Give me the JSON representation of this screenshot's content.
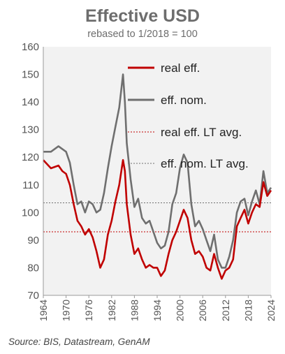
{
  "chart_data": {
    "type": "line",
    "title": "Effective USD",
    "subtitle": "rebased to 1/2018 = 100",
    "ylim": [
      70,
      160
    ],
    "yticks": [
      70,
      80,
      90,
      100,
      110,
      120,
      130,
      140,
      150,
      160
    ],
    "xlim": [
      1964,
      2024
    ],
    "xticks": [
      "1964",
      "1970",
      "1976",
      "1982",
      "1988",
      "1994",
      "2000",
      "2006",
      "2012",
      "2018",
      "2024"
    ],
    "grid": false,
    "legend_position": "top-right",
    "series": [
      {
        "name": "real eff.",
        "color": "#c00000",
        "style": "solid",
        "x": [
          1964,
          1966,
          1968,
          1969,
          1970,
          1971,
          1972,
          1973,
          1974,
          1975,
          1976,
          1977,
          1978,
          1979,
          1980,
          1981,
          1982,
          1983,
          1984,
          1985,
          1985.5,
          1986,
          1987,
          1988,
          1989,
          1990,
          1991,
          1992,
          1993,
          1994,
          1995,
          1996,
          1997,
          1998,
          1999,
          2000,
          2001,
          2002,
          2003,
          2004,
          2005,
          2006,
          2007,
          2008,
          2009,
          2010,
          2011,
          2012,
          2013,
          2014,
          2015,
          2016,
          2017,
          2018,
          2019,
          2020,
          2021,
          2022,
          2023,
          2024
        ],
        "y": [
          119,
          116,
          117,
          115,
          114,
          110,
          103,
          97,
          95,
          92,
          94,
          91,
          86,
          80,
          83,
          92,
          97,
          104,
          110,
          119,
          115,
          103,
          92,
          85,
          87,
          83,
          80,
          81,
          80,
          80,
          77,
          79,
          85,
          90,
          93,
          97,
          101,
          98,
          90,
          85,
          86,
          84,
          80,
          79,
          85,
          80,
          76,
          79,
          80,
          83,
          95,
          98,
          101,
          96,
          100,
          103,
          102,
          111,
          106,
          108
        ]
      },
      {
        "name": "eff. nom.",
        "color": "#6f6f6f",
        "style": "solid",
        "x": [
          1964,
          1966,
          1968,
          1969,
          1970,
          1971,
          1972,
          1973,
          1974,
          1975,
          1976,
          1977,
          1978,
          1979,
          1980,
          1981,
          1982,
          1983,
          1984,
          1985,
          1985.5,
          1986,
          1987,
          1988,
          1989,
          1990,
          1991,
          1992,
          1993,
          1994,
          1995,
          1996,
          1997,
          1998,
          1999,
          2000,
          2001,
          2002,
          2003,
          2004,
          2005,
          2006,
          2007,
          2008,
          2009,
          2010,
          2011,
          2012,
          2013,
          2014,
          2015,
          2016,
          2017,
          2018,
          2019,
          2020,
          2021,
          2022,
          2023,
          2024
        ],
        "y": [
          122,
          122,
          124,
          123,
          122,
          118,
          110,
          103,
          104,
          100,
          104,
          103,
          100,
          101,
          107,
          116,
          124,
          131,
          138,
          150,
          140,
          125,
          112,
          102,
          105,
          98,
          96,
          97,
          93,
          89,
          87,
          88,
          93,
          103,
          107,
          116,
          121,
          118,
          103,
          95,
          97,
          94,
          90,
          86,
          92,
          83,
          80,
          80,
          84,
          90,
          100,
          104,
          105,
          99,
          104,
          108,
          103,
          115,
          107,
          109
        ]
      },
      {
        "name": "real eff. LT avg.",
        "color": "#c00000",
        "style": "dotted",
        "value": 93
      },
      {
        "name": "eff. nom. LT avg.",
        "color": "#6f6f6f",
        "style": "dotted",
        "value": 103.5
      }
    ],
    "source": "Source: BIS, Datastream, GenAM"
  }
}
